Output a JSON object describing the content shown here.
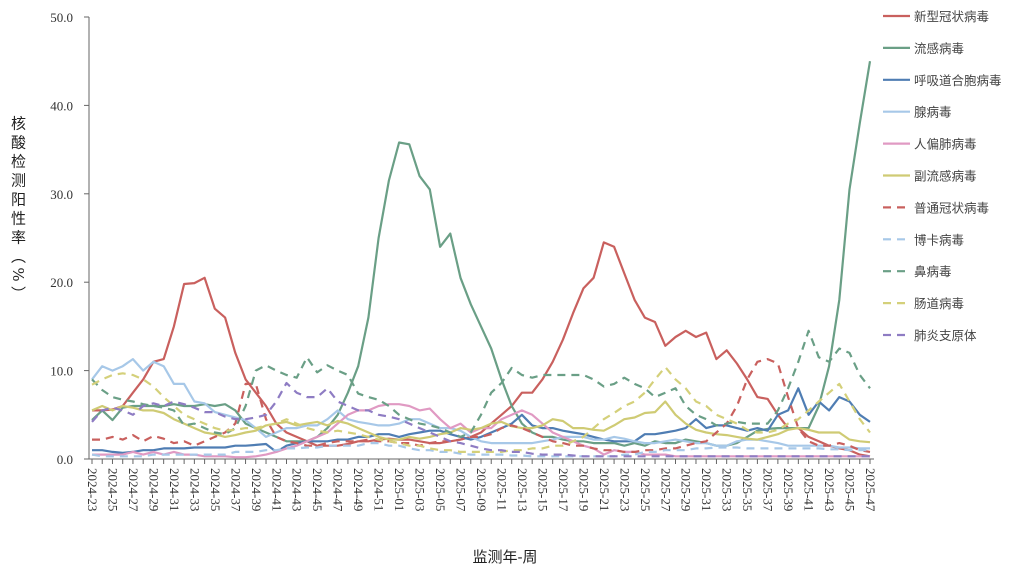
{
  "chart_data": {
    "type": "line",
    "title": "",
    "xlabel": "监测年-周",
    "ylabel": "核酸检测阳性率（%）",
    "ylim": [
      0,
      50
    ],
    "y_ticks": [
      "0.0",
      "10.0",
      "20.0",
      "30.0",
      "40.0",
      "50.0"
    ],
    "grid": false,
    "legend_position": "right",
    "x": [
      "2024-23",
      "2024-24",
      "2024-25",
      "2024-26",
      "2024-27",
      "2024-28",
      "2024-29",
      "2024-30",
      "2024-31",
      "2024-32",
      "2024-33",
      "2024-34",
      "2024-35",
      "2024-36",
      "2024-37",
      "2024-38",
      "2024-39",
      "2024-40",
      "2024-41",
      "2024-42",
      "2024-43",
      "2024-44",
      "2024-45",
      "2024-46",
      "2024-47",
      "2024-48",
      "2024-49",
      "2024-50",
      "2024-51",
      "2024-52",
      "2025-01",
      "2025-02",
      "2025-03",
      "2025-04",
      "2025-05",
      "2025-06",
      "2025-07",
      "2025-08",
      "2025-09",
      "2025-10",
      "2025-11",
      "2025-12",
      "2025-13",
      "2025-14",
      "2025-15",
      "2025-16",
      "2025-17",
      "2025-18",
      "2025-19",
      "2025-20",
      "2025-21",
      "2025-22",
      "2025-23",
      "2025-24",
      "2025-25",
      "2025-26",
      "2025-27",
      "2025-28",
      "2025-29",
      "2025-30",
      "2025-31",
      "2025-32",
      "2025-33",
      "2025-34",
      "2025-35",
      "2025-36",
      "2025-37",
      "2025-38",
      "2025-39",
      "2025-40",
      "2025-41",
      "2025-42",
      "2025-43",
      "2025-44",
      "2025-45",
      "2025-46",
      "2025-47"
    ],
    "x_tick_labels": [
      "2024-23",
      "2024-25",
      "2024-27",
      "2024-29",
      "2024-31",
      "2024-33",
      "2024-35",
      "2024-37",
      "2024-39",
      "2024-41",
      "2024-43",
      "2024-45",
      "2024-47",
      "2024-49",
      "2024-51",
      "2025-01",
      "2025-03",
      "2025-05",
      "2025-07",
      "2025-09",
      "2025-11",
      "2025-13",
      "2025-15",
      "2025-17",
      "2025-19",
      "2025-21",
      "2025-23",
      "2025-25",
      "2025-27",
      "2025-29",
      "2025-31",
      "2025-33",
      "2025-35",
      "2025-37",
      "2025-39",
      "2025-41",
      "2025-43",
      "2025-45",
      "2025-47"
    ],
    "series": [
      {
        "name": "新型冠状病毒",
        "color": "#c9605e",
        "dash": false,
        "values": [
          5.5,
          5.5,
          5.6,
          6,
          7.5,
          9,
          11,
          11.3,
          15,
          19.8,
          19.9,
          20.5,
          17,
          16,
          12,
          9,
          7.5,
          6,
          4,
          3,
          2.5,
          2,
          1.5,
          1.5,
          1.5,
          1.7,
          2,
          2,
          2.2,
          2.3,
          2.2,
          2.2,
          2,
          1.8,
          1.8,
          2,
          2.2,
          2.5,
          3,
          4,
          5,
          6,
          7.5,
          7.5,
          9,
          11,
          13.5,
          16.5,
          19.3,
          20.5,
          24.5,
          24,
          21,
          18,
          16,
          15.5,
          12.8,
          13.8,
          14.5,
          13.8,
          14.3,
          11.3,
          12.3,
          10.8,
          9,
          7,
          6.8,
          5,
          3.5,
          3.5,
          2.5,
          2,
          1.5,
          1.2,
          1,
          0.5,
          0.3
        ]
      },
      {
        "name": "流感病毒",
        "color": "#6a9f86",
        "dash": false,
        "values": [
          4.4,
          5.5,
          4.4,
          5.8,
          6,
          6,
          6,
          6,
          6.2,
          6,
          6,
          6.2,
          6,
          6.2,
          5.5,
          4,
          3.5,
          3,
          2.5,
          2,
          2,
          2,
          2.5,
          3.5,
          5,
          7.5,
          10.5,
          16,
          25,
          31.5,
          35.8,
          35.6,
          32,
          30.5,
          24,
          25.5,
          20.5,
          17.5,
          15,
          12.5,
          9,
          6,
          4,
          3,
          2.5,
          2.5,
          2.2,
          2,
          2,
          1.8,
          1.8,
          1.8,
          1.5,
          1.8,
          1.5,
          2,
          1.8,
          1.8,
          2.2,
          2,
          1.8,
          1.5,
          1.5,
          1.8,
          2.5,
          3.2,
          3.4,
          3.5,
          3.5,
          3.5,
          3.5,
          6,
          10.5,
          18,
          30.5,
          38,
          45
        ]
      },
      {
        "name": "呼吸道合胞病毒",
        "color": "#4f7db3",
        "dash": false,
        "values": [
          1,
          1,
          0.8,
          0.7,
          0.8,
          1,
          1,
          1.2,
          1.2,
          1.2,
          1.3,
          1.3,
          1.3,
          1.3,
          1.5,
          1.5,
          1.6,
          1.7,
          0.8,
          1.5,
          1.8,
          2,
          2,
          2,
          2.2,
          2.2,
          2.5,
          2.5,
          2.8,
          2.8,
          2.5,
          2.8,
          3,
          3.2,
          3.2,
          2.8,
          2.5,
          2.2,
          2.5,
          3,
          3.5,
          4,
          5,
          3.8,
          3.5,
          3.5,
          3.2,
          3,
          2.8,
          2.5,
          2.2,
          2,
          2,
          2,
          2.8,
          2.8,
          3,
          3.2,
          3.5,
          4.5,
          3.5,
          3.8,
          3.8,
          3.5,
          3.2,
          3.5,
          3.2,
          5,
          5.5,
          8,
          5,
          6.5,
          5.5,
          7,
          6.5,
          5,
          4.2
        ]
      },
      {
        "name": "腺病毒",
        "color": "#a7c8e8",
        "dash": false,
        "values": [
          9,
          10.5,
          10,
          10.5,
          11.3,
          10,
          11,
          10.5,
          8.5,
          8.5,
          6.5,
          6.3,
          5.3,
          5,
          4.7,
          4.4,
          3.5,
          2.5,
          3,
          3.5,
          3.5,
          3.8,
          3.8,
          4.5,
          5.5,
          4.5,
          4.2,
          4,
          3.8,
          3.8,
          4,
          4.5,
          4.5,
          4,
          3.5,
          3.5,
          3.2,
          2.5,
          2,
          1.8,
          1.8,
          1.8,
          1.8,
          1.8,
          2,
          2.2,
          2.5,
          2.5,
          2.5,
          2.2,
          2.2,
          2.5,
          2.3,
          2,
          1.8,
          1.8,
          2,
          2.2,
          2,
          1.8,
          1.8,
          1.5,
          1.5,
          2,
          2.2,
          2.2,
          2,
          1.8,
          1.5,
          1.5,
          1.5,
          1.5,
          1.5,
          1.3,
          1.3,
          1.2,
          1.2
        ]
      },
      {
        "name": "人偏肺病毒",
        "color": "#e09ac3",
        "dash": false,
        "values": [
          0.5,
          0.5,
          0.5,
          0.5,
          0.8,
          0.5,
          0.8,
          0.5,
          0.8,
          0.5,
          0.5,
          0.3,
          0.3,
          0.3,
          0.2,
          0.2,
          0.3,
          0.5,
          0.8,
          1.2,
          1.5,
          2,
          2.5,
          3,
          4,
          5,
          5.5,
          5.5,
          6,
          6.2,
          6.2,
          6,
          5.5,
          5.7,
          4.5,
          3.5,
          4,
          3,
          3.5,
          3.5,
          4.5,
          5,
          5.5,
          5,
          4,
          3,
          2.5,
          2,
          1.5,
          1.2,
          0.5,
          1,
          0.8,
          0.8,
          0.5,
          0.5,
          0.5,
          0.3,
          0.3,
          0.3,
          0.3,
          0.3,
          0.3,
          0.3,
          0.3,
          0.3,
          0.3,
          0.3,
          0.3,
          0.3,
          0.3,
          0.3,
          0.3,
          0.3,
          0.3,
          0.3,
          0.3
        ]
      },
      {
        "name": "副流感病毒",
        "color": "#cfcb74",
        "dash": false,
        "values": [
          5.5,
          6,
          5.5,
          6,
          5.8,
          5.5,
          5.5,
          5.2,
          4.5,
          4,
          3.5,
          3,
          2.8,
          2.5,
          2.7,
          3,
          3.2,
          3.8,
          4,
          4.2,
          3.8,
          4,
          4.2,
          3.8,
          4.3,
          4,
          3.5,
          3,
          2.5,
          2.2,
          2.2,
          2.5,
          2.3,
          2.5,
          2.8,
          3,
          3.5,
          3.3,
          3.5,
          4,
          4.2,
          3.7,
          3.5,
          3.5,
          3.8,
          4.5,
          4.3,
          3.5,
          3.5,
          3.3,
          3.2,
          3.8,
          4.5,
          4.7,
          5.2,
          5.3,
          6.5,
          5,
          4,
          3.3,
          3,
          2.8,
          2.7,
          2.5,
          2.3,
          2.2,
          2.5,
          2.8,
          3.3,
          3.5,
          3.3,
          3,
          3,
          3,
          2.2,
          2,
          1.9
        ]
      },
      {
        "name": "普通冠状病毒",
        "color": "#c9605e",
        "dash": true,
        "values": [
          2.2,
          2.2,
          2.5,
          2.2,
          2.7,
          2,
          2.6,
          2.3,
          1.8,
          2,
          1.5,
          2,
          2.5,
          3,
          4,
          8.5,
          8.5,
          4.5,
          2.5,
          2,
          1.8,
          1.5,
          1.5,
          1.8,
          2,
          2,
          2,
          2.2,
          2,
          2,
          1.8,
          1.8,
          1.5,
          1.8,
          2,
          2,
          2.2,
          2.5,
          2.5,
          2.8,
          3.5,
          3.8,
          3.5,
          3,
          2.5,
          2,
          1.8,
          1.5,
          1.5,
          1.2,
          1,
          1,
          0.8,
          0.8,
          1,
          1,
          1.2,
          1.2,
          1.5,
          1.8,
          2,
          3,
          4,
          6,
          9,
          11,
          11.3,
          10.8,
          7,
          3.5,
          2,
          1.5,
          1.5,
          1.8,
          1.5,
          1,
          0.8
        ]
      },
      {
        "name": "博卡病毒",
        "color": "#a7c8e8",
        "dash": true,
        "values": [
          0.5,
          0.3,
          0.3,
          0.3,
          0.3,
          0.3,
          0.5,
          0.5,
          0.5,
          0.5,
          0.5,
          0.5,
          0.5,
          0.5,
          0.8,
          0.8,
          0.8,
          1,
          1,
          1.2,
          1.2,
          1.3,
          1.3,
          1.5,
          1.5,
          1.5,
          1.5,
          1.8,
          1.8,
          1.5,
          1.5,
          1.2,
          1,
          1,
          0.8,
          0.8,
          0.6,
          0.5,
          0.5,
          0.5,
          0.5,
          0.4,
          0.4,
          0.3,
          0.3,
          0.3,
          0.3,
          0.3,
          0.3,
          0.3,
          0.3,
          0.3,
          0.5,
          0.5,
          0.8,
          0.8,
          1,
          1,
          1,
          1.2,
          1.2,
          1.3,
          1.3,
          1.3,
          1.2,
          1.2,
          1.2,
          1.2,
          1.2,
          1.2,
          1.2,
          1.2,
          1.1,
          1.1,
          1,
          1,
          1
        ]
      },
      {
        "name": "鼻病毒",
        "color": "#6a9f86",
        "dash": true,
        "values": [
          9,
          7.8,
          7,
          6.7,
          6.5,
          6.2,
          6,
          5.8,
          5.5,
          3.8,
          4,
          3.5,
          3,
          2.8,
          3.5,
          6,
          10,
          10.6,
          10,
          9.5,
          9.2,
          11.5,
          9.8,
          10.6,
          10,
          9.5,
          7.4,
          7,
          6.7,
          6,
          5,
          4.5,
          4,
          3.8,
          3.5,
          3,
          2.5,
          3,
          5,
          7.5,
          8.6,
          10.3,
          9.5,
          9.2,
          9.5,
          9.5,
          9.5,
          9.5,
          9.5,
          9,
          8.2,
          8.5,
          9.2,
          8.5,
          8,
          7,
          7.5,
          8,
          6,
          5,
          4.5,
          3.8,
          4,
          4.2,
          4,
          4,
          4,
          5.5,
          8,
          11,
          14.5,
          11.5,
          11,
          12.5,
          12,
          9.5,
          8
        ]
      },
      {
        "name": "肠道病毒",
        "color": "#d4d07a",
        "dash": true,
        "values": [
          8.4,
          9,
          9.5,
          9.7,
          9.5,
          9,
          8.2,
          7,
          6,
          5,
          4.5,
          4,
          3.5,
          3.2,
          3.3,
          3.5,
          3.5,
          3.8,
          4,
          4.5,
          4,
          3.5,
          3.2,
          3,
          3.2,
          3,
          2.8,
          2.5,
          2.2,
          2,
          1.8,
          1.5,
          1.5,
          1.2,
          1,
          1,
          0.8,
          0.8,
          0.8,
          0.8,
          0.8,
          1,
          1,
          1.2,
          1.2,
          1.5,
          1.5,
          2,
          2.5,
          3.5,
          4.5,
          5.2,
          6,
          6.5,
          7.5,
          9,
          10.4,
          9,
          8,
          6.5,
          6,
          5,
          4.5,
          4,
          3.3,
          3,
          3,
          3.3,
          4,
          4.5,
          5.5,
          6.5,
          7.5,
          8.5,
          6.5,
          4.5,
          3
        ]
      },
      {
        "name": "肺炎支原体",
        "color": "#8e7cc3",
        "dash": true,
        "values": [
          4.2,
          5.5,
          5.8,
          5.5,
          5,
          6,
          6.3,
          6,
          6.5,
          6.2,
          5.8,
          5.3,
          5.3,
          4.8,
          4.5,
          4.5,
          4.7,
          5,
          6.5,
          8.6,
          7.5,
          7,
          7,
          8,
          6.5,
          6,
          5.5,
          5.5,
          5,
          4.8,
          4.5,
          4,
          3.5,
          3,
          2.5,
          2,
          1.8,
          1.5,
          1.2,
          1,
          1,
          0.8,
          0.8,
          0.6,
          0.5,
          0.5,
          0.5,
          0.4,
          0.3,
          0.3,
          0.3,
          0.3,
          0.3,
          0.3,
          0.3,
          0.3,
          0.3,
          0.3,
          0.3,
          0.3,
          0.3,
          0.3,
          0.3,
          0.3,
          0.3,
          0.3,
          0.3,
          0.3,
          0.3,
          0.3,
          0.3,
          0.3,
          0.3,
          0.3,
          0.3,
          0.3,
          0.3
        ]
      }
    ]
  }
}
